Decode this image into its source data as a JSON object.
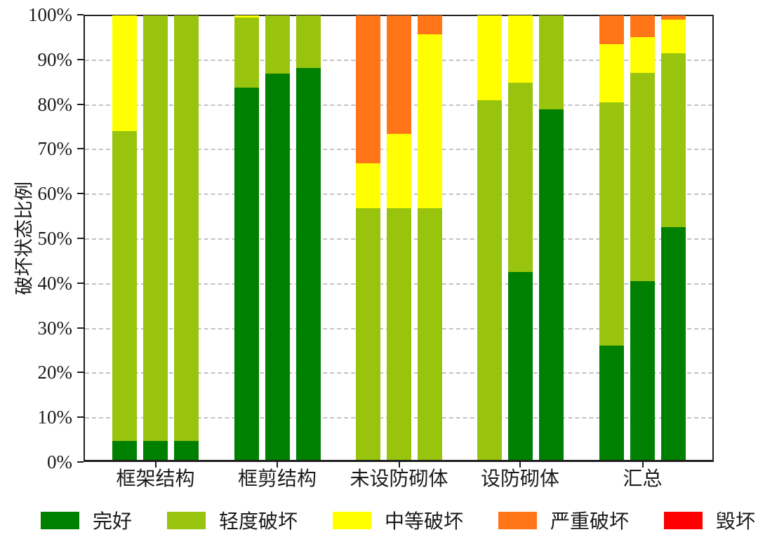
{
  "chart_data": {
    "type": "bar",
    "variant": "100-percent-stacked, 3 bars per category",
    "title": "",
    "xlabel": "",
    "ylabel": "破坏状态比例",
    "ylim": [
      0,
      100
    ],
    "grid": "horizontal dashed gridlines at 10% through 90%",
    "legend_position": "bottom",
    "y_tick_labels": [
      "0%",
      "10%",
      "20%",
      "30%",
      "40%",
      "50%",
      "60%",
      "70%",
      "80%",
      "90%",
      "100%"
    ],
    "categories": [
      "框架结构",
      "框剪结构",
      "未设防砌体",
      "设防砌体",
      "汇总"
    ],
    "bars_per_category": 3,
    "series": [
      {
        "id": "intact",
        "name": "完好",
        "color": "#008000",
        "values": [
          [
            4.3,
            4.3,
            4.3
          ],
          [
            83.7,
            86.9,
            88.1
          ],
          [
            0,
            0,
            0
          ],
          [
            0,
            42.3,
            78.9
          ],
          [
            25.7,
            40.2,
            52.4
          ]
        ]
      },
      {
        "id": "slight-damage",
        "name": "轻度破坏",
        "color": "#98C40D",
        "values": [
          [
            69.7,
            95.7,
            95.7
          ],
          [
            15.8,
            13.1,
            11.9
          ],
          [
            56.7,
            56.7,
            56.7
          ],
          [
            80.9,
            42.6,
            21.1
          ],
          [
            54.7,
            46.8,
            39.1
          ]
        ]
      },
      {
        "id": "moderate-damage",
        "name": "中等破坏",
        "color": "#FFFF00",
        "values": [
          [
            26.0,
            0,
            0
          ],
          [
            0.5,
            0,
            0
          ],
          [
            10.0,
            16.6,
            39.1
          ],
          [
            19.1,
            15.1,
            0
          ],
          [
            13.2,
            8.1,
            7.5
          ]
        ]
      },
      {
        "id": "severe-damage",
        "name": "严重破坏",
        "color": "#FF7518",
        "values": [
          [
            0,
            0,
            0
          ],
          [
            0,
            0,
            0
          ],
          [
            33.3,
            26.7,
            4.2
          ],
          [
            0,
            0,
            0
          ],
          [
            6.4,
            4.9,
            1.0
          ]
        ]
      },
      {
        "id": "destroyed",
        "name": "毁坏",
        "color": "#FF0000",
        "values": [
          [
            0,
            0,
            0
          ],
          [
            0,
            0,
            0
          ],
          [
            0,
            0,
            0
          ],
          [
            0,
            0,
            0
          ],
          [
            0,
            0,
            0
          ]
        ]
      }
    ]
  }
}
